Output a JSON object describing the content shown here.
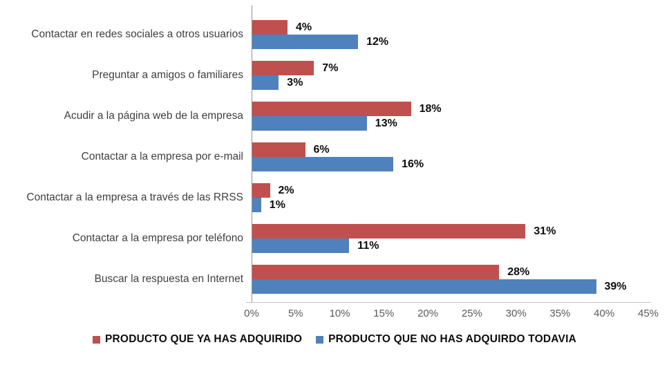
{
  "chart_data": {
    "type": "bar",
    "orientation": "horizontal",
    "title": "",
    "categories": [
      "Contactar en redes sociales a otros usuarios",
      "Preguntar a amigos o familiares",
      "Acudir a la página web de la empresa",
      "Contactar a la empresa por e-mail",
      "Contactar a la empresa a través de las RRSS",
      "Contactar a la empresa por teléfono",
      "Buscar la respuesta en Internet"
    ],
    "series": [
      {
        "name": "PRODUCTO QUE YA HAS ADQUIRIDO",
        "color": "#C0504D",
        "values": [
          4,
          7,
          18,
          6,
          2,
          31,
          28
        ],
        "labels": [
          "4%",
          "7%",
          "18%",
          "6%",
          "2%",
          "31%",
          "28%"
        ]
      },
      {
        "name": "PRODUCTO QUE NO HAS ADQUIRDO TODAVIA",
        "color": "#4F81BD",
        "values": [
          12,
          3,
          13,
          16,
          1,
          11,
          39
        ],
        "labels": [
          "12%",
          "3%",
          "13%",
          "16%",
          "1%",
          "11%",
          "39%"
        ]
      }
    ],
    "x_axis": {
      "min": 0,
      "max": 45,
      "tick_step": 5,
      "tick_labels": [
        "0%",
        "5%",
        "10%",
        "15%",
        "20%",
        "25%",
        "30%",
        "35%",
        "40%",
        "45%"
      ]
    },
    "grid": false,
    "legend_position": "bottom",
    "colors": {
      "axis_line": "#8e8e8e",
      "baseline": "#c3c3c3",
      "category_text": "#3f3f3f",
      "tick_text": "#595959",
      "data_label_text": "#0d0d0d"
    }
  }
}
